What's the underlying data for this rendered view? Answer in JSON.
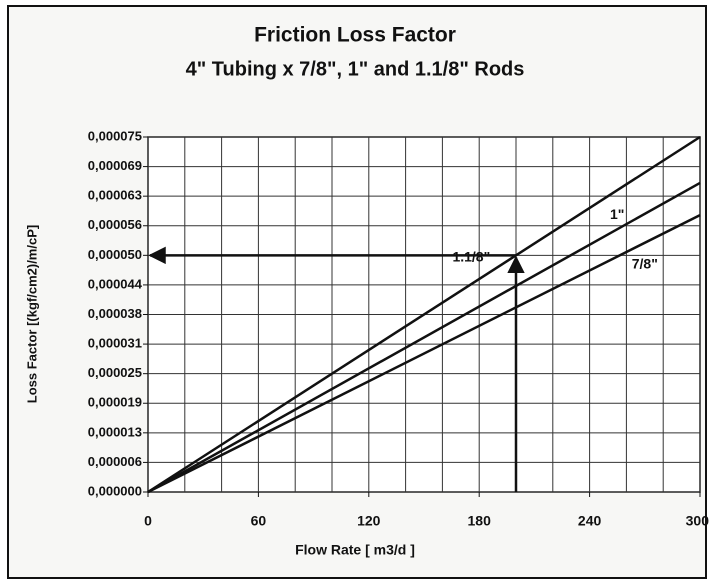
{
  "chart_data": {
    "type": "line",
    "title": "Friction Loss Factor",
    "subtitle": "4\" Tubing x 7/8\", 1\" and 1.1/8\" Rods",
    "x_label": "Flow Rate [ m3/d ]",
    "y_label": "Loss Factor [(kgf/cm2)/m/cP]",
    "x": [
      0,
      300
    ],
    "series": [
      {
        "name": "1.1/8\"",
        "color": "#111111",
        "values": [
          0,
          7.5e-05
        ]
      },
      {
        "name": "1\"",
        "color": "#111111",
        "values": [
          0,
          6.53e-05
        ]
      },
      {
        "name": "7/8\"",
        "color": "#111111",
        "values": [
          0,
          5.85e-05
        ]
      }
    ],
    "xlim": [
      0,
      300
    ],
    "xticks": [
      0,
      60,
      120,
      180,
      240,
      300
    ],
    "xgrid_ticks": [
      0,
      20,
      40,
      60,
      80,
      100,
      120,
      140,
      160,
      180,
      200,
      220,
      240,
      260,
      280,
      300
    ],
    "ylim": [
      0,
      7.5e-05
    ],
    "yticks": [
      {
        "value": 0,
        "label": "0,000000"
      },
      {
        "value": 6.25e-06,
        "label": "0,000006"
      },
      {
        "value": 1.25e-05,
        "label": "0,000013"
      },
      {
        "value": 1.875e-05,
        "label": "0,000019"
      },
      {
        "value": 2.5e-05,
        "label": "0,000025"
      },
      {
        "value": 3.125e-05,
        "label": "0,000031"
      },
      {
        "value": 3.75e-05,
        "label": "0,000038"
      },
      {
        "value": 4.375e-05,
        "label": "0,000044"
      },
      {
        "value": 5e-05,
        "label": "0,000050"
      },
      {
        "value": 5.625e-05,
        "label": "0,000056"
      },
      {
        "value": 6.25e-05,
        "label": "0,000063"
      },
      {
        "value": 6.875e-05,
        "label": "0,000069"
      },
      {
        "value": 7.5e-05,
        "label": "0,000075"
      }
    ],
    "grid": true,
    "arrow": {
      "x": 200,
      "y": 5e-05
    }
  }
}
